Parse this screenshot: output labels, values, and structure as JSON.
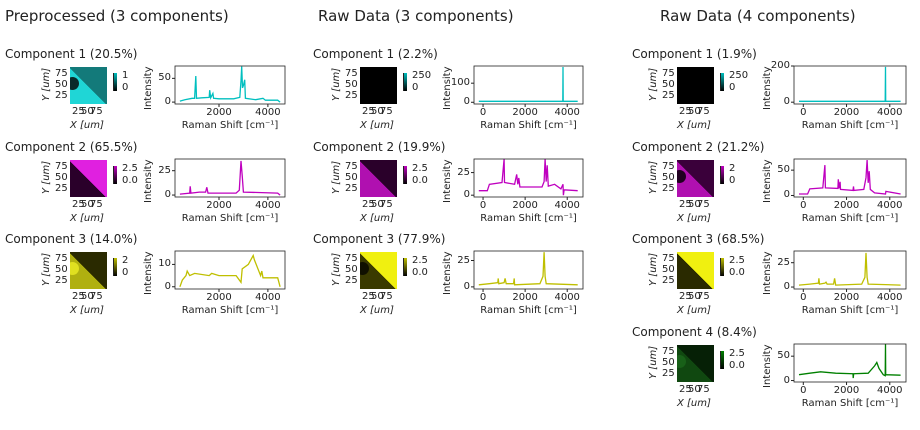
{
  "colors": {
    "cyan": "#00bfbf",
    "magenta": "#bf00bf",
    "yellow": "#bfbf00",
    "green": "#008000"
  },
  "axis_labels": {
    "map_x": "X [um]",
    "map_y": "Y [um]",
    "spec_x": "Raman Shift [cm⁻¹]",
    "spec_y": "Intensity"
  },
  "map_ticks": {
    "x": [
      "25",
      "50",
      "75"
    ],
    "y": [
      "75",
      "50",
      "25"
    ]
  },
  "chart_data": [
    {
      "title": "Preprocessed (3 components)",
      "type": "line",
      "xlim": [
        200,
        4700
      ],
      "xticks": [
        2000,
        4000
      ],
      "panels": [
        {
          "title": "Component 1 (20.5%)",
          "color": "cyan",
          "colorbar_ticks": [
            "1",
            "0"
          ],
          "map_colors": [
            "#137a7a",
            "#1fd6d6"
          ],
          "map_circle": "#0a2a2a",
          "ylim": [
            -4,
            76
          ],
          "yticks": [
            0,
            50
          ],
          "spectrum": [
            [
              400,
              2
            ],
            [
              600,
              5
            ],
            [
              900,
              8
            ],
            [
              1000,
              8
            ],
            [
              1050,
              55
            ],
            [
              1080,
              8
            ],
            [
              1300,
              9
            ],
            [
              1600,
              10
            ],
            [
              1620,
              25
            ],
            [
              1660,
              9
            ],
            [
              1750,
              18
            ],
            [
              1780,
              8
            ],
            [
              2000,
              7
            ],
            [
              2600,
              7
            ],
            [
              2850,
              10
            ],
            [
              2900,
              45
            ],
            [
              2930,
              75
            ],
            [
              2960,
              30
            ],
            [
              3000,
              35
            ],
            [
              3050,
              47
            ],
            [
              3080,
              8
            ],
            [
              3500,
              5
            ],
            [
              3800,
              8
            ],
            [
              3900,
              4
            ],
            [
              4400,
              4
            ],
            [
              4500,
              0
            ]
          ]
        },
        {
          "title": "Component 2 (65.5%)",
          "color": "magenta",
          "colorbar_ticks": [
            "2.5",
            "0.0"
          ],
          "map_colors": [
            "#e020e0",
            "#2a002a"
          ],
          "map_circle": null,
          "ylim": [
            -2,
            37
          ],
          "yticks": [
            0,
            25
          ],
          "spectrum": [
            [
              400,
              1
            ],
            [
              800,
              2
            ],
            [
              820,
              9
            ],
            [
              850,
              2
            ],
            [
              1200,
              3
            ],
            [
              1450,
              3
            ],
            [
              1500,
              8
            ],
            [
              1550,
              2
            ],
            [
              2700,
              2
            ],
            [
              2830,
              5
            ],
            [
              2900,
              35
            ],
            [
              2950,
              20
            ],
            [
              3000,
              3
            ],
            [
              4400,
              2
            ],
            [
              4500,
              0
            ]
          ]
        },
        {
          "title": "Component 3 (14.0%)",
          "color": "yellow",
          "colorbar_ticks": [
            "2",
            "0"
          ],
          "map_colors": [
            "#2a2a00",
            "#b0b010"
          ],
          "map_circle": "#e0e020",
          "ylim": [
            -1,
            16
          ],
          "yticks": [
            0,
            10
          ],
          "spectrum": [
            [
              400,
              0
            ],
            [
              500,
              3
            ],
            [
              650,
              5
            ],
            [
              700,
              7
            ],
            [
              800,
              5
            ],
            [
              1000,
              6
            ],
            [
              1600,
              5
            ],
            [
              1700,
              6
            ],
            [
              2000,
              5
            ],
            [
              2700,
              5
            ],
            [
              2900,
              2
            ],
            [
              2950,
              8
            ],
            [
              3200,
              10
            ],
            [
              3400,
              14
            ],
            [
              3450,
              12
            ],
            [
              3700,
              5
            ],
            [
              3750,
              7
            ],
            [
              3800,
              4
            ],
            [
              4400,
              4
            ],
            [
              4500,
              0
            ]
          ]
        }
      ]
    },
    {
      "title": "Raw Data (3 components)",
      "type": "line",
      "xlim": [
        -430,
        4750
      ],
      "xticks": [
        0,
        2000,
        4000
      ],
      "panels": [
        {
          "title": "Component 1 (2.2%)",
          "color": "cyan",
          "colorbar_ticks": [
            "250",
            "0"
          ],
          "map_colors": [
            "#000000",
            "#000000"
          ],
          "map_circle": null,
          "ylim": [
            -9,
            190
          ],
          "yticks": [
            0,
            100
          ],
          "spectrum": [
            [
              -200,
              5
            ],
            [
              3790,
              5
            ],
            [
              3800,
              185
            ],
            [
              3810,
              5
            ],
            [
              4500,
              5
            ]
          ]
        },
        {
          "title": "Component 2 (19.9%)",
          "color": "magenta",
          "colorbar_ticks": [
            "2.5",
            "0.0"
          ],
          "map_colors": [
            "#2a002a",
            "#b010b0"
          ],
          "map_circle": null,
          "ylim": [
            -2,
            40
          ],
          "yticks": [
            0,
            25
          ],
          "spectrum": [
            [
              -200,
              5
            ],
            [
              200,
              5
            ],
            [
              300,
              12
            ],
            [
              900,
              14
            ],
            [
              1000,
              40
            ],
            [
              1020,
              14
            ],
            [
              1500,
              12
            ],
            [
              1600,
              23
            ],
            [
              1650,
              12
            ],
            [
              1700,
              19
            ],
            [
              1750,
              9
            ],
            [
              2800,
              9
            ],
            [
              2900,
              15
            ],
            [
              2950,
              40
            ],
            [
              3000,
              15
            ],
            [
              3050,
              33
            ],
            [
              3100,
              10
            ],
            [
              3400,
              12
            ],
            [
              3700,
              7
            ],
            [
              3800,
              12
            ],
            [
              3820,
              0
            ],
            [
              3850,
              6
            ],
            [
              4500,
              5
            ]
          ]
        },
        {
          "title": "Component 3 (77.9%)",
          "color": "yellow",
          "colorbar_ticks": [
            "2.5",
            "0.0"
          ],
          "map_colors": [
            "#f0f010",
            "#3a3a00"
          ],
          "map_circle": "#101000",
          "ylim": [
            -2,
            34
          ],
          "yticks": [
            0,
            25
          ],
          "spectrum": [
            [
              -200,
              2
            ],
            [
              300,
              3
            ],
            [
              700,
              4
            ],
            [
              720,
              8
            ],
            [
              750,
              3
            ],
            [
              1000,
              4
            ],
            [
              1050,
              8
            ],
            [
              1100,
              3
            ],
            [
              1450,
              3
            ],
            [
              1480,
              8
            ],
            [
              1500,
              2
            ],
            [
              2700,
              3
            ],
            [
              2850,
              10
            ],
            [
              2900,
              33
            ],
            [
              2950,
              10
            ],
            [
              3000,
              3
            ],
            [
              4500,
              2
            ]
          ]
        }
      ]
    },
    {
      "title": "Raw Data (4 components)",
      "type": "line",
      "xlim": [
        -430,
        4750
      ],
      "xticks": [
        0,
        2000,
        4000
      ],
      "panels": [
        {
          "title": "Component 1 (1.9%)",
          "color": "cyan",
          "colorbar_ticks": [
            "250",
            "0"
          ],
          "map_colors": [
            "#000000",
            "#000000"
          ],
          "map_circle": null,
          "ylim": [
            -10,
            200
          ],
          "yticks": [
            0,
            200
          ],
          "spectrum": [
            [
              -200,
              5
            ],
            [
              3790,
              5
            ],
            [
              3800,
              195
            ],
            [
              3810,
              5
            ],
            [
              4500,
              5
            ]
          ]
        },
        {
          "title": "Component 2 (21.2%)",
          "color": "magenta",
          "colorbar_ticks": [
            "2",
            "0"
          ],
          "map_colors": [
            "#3a003a",
            "#b010b0"
          ],
          "map_circle": "#200020",
          "ylim": [
            -3,
            72
          ],
          "yticks": [
            0,
            50
          ],
          "spectrum": [
            [
              -200,
              3
            ],
            [
              200,
              3
            ],
            [
              300,
              13
            ],
            [
              900,
              15
            ],
            [
              1000,
              60
            ],
            [
              1020,
              15
            ],
            [
              1600,
              14
            ],
            [
              1620,
              32
            ],
            [
              1650,
              14
            ],
            [
              1700,
              27
            ],
            [
              1720,
              12
            ],
            [
              2300,
              10
            ],
            [
              2320,
              18
            ],
            [
              2340,
              10
            ],
            [
              2800,
              12
            ],
            [
              2900,
              35
            ],
            [
              2950,
              70
            ],
            [
              3000,
              25
            ],
            [
              3050,
              48
            ],
            [
              3100,
              12
            ],
            [
              3300,
              5
            ],
            [
              3800,
              3
            ],
            [
              3820,
              8
            ],
            [
              4500,
              3
            ]
          ]
        },
        {
          "title": "Component 3 (68.5%)",
          "color": "yellow",
          "colorbar_ticks": [
            "2.5",
            "0.0"
          ],
          "map_colors": [
            "#f0f010",
            "#2a2a00"
          ],
          "map_circle": null,
          "ylim": [
            -2,
            37
          ],
          "yticks": [
            0,
            25
          ],
          "spectrum": [
            [
              -200,
              2
            ],
            [
              300,
              3
            ],
            [
              700,
              4
            ],
            [
              720,
              9
            ],
            [
              750,
              3
            ],
            [
              1000,
              4
            ],
            [
              1050,
              5
            ],
            [
              1100,
              3
            ],
            [
              1400,
              3
            ],
            [
              1450,
              9
            ],
            [
              1500,
              2
            ],
            [
              2700,
              3
            ],
            [
              2850,
              10
            ],
            [
              2900,
              35
            ],
            [
              2950,
              10
            ],
            [
              3000,
              3
            ],
            [
              4500,
              2
            ]
          ]
        },
        {
          "title": "Component 4 (8.4%)",
          "color": "green",
          "colorbar_ticks": [
            "2.5",
            "0.0"
          ],
          "map_colors": [
            "#062006",
            "#104810"
          ],
          "map_circle": "#186018",
          "ylim": [
            -3,
            75
          ],
          "yticks": [
            0,
            50
          ],
          "spectrum": [
            [
              -200,
              12
            ],
            [
              300,
              15
            ],
            [
              800,
              18
            ],
            [
              1500,
              15
            ],
            [
              2300,
              14
            ],
            [
              2310,
              5
            ],
            [
              2330,
              14
            ],
            [
              3000,
              15
            ],
            [
              3300,
              30
            ],
            [
              3400,
              37
            ],
            [
              3500,
              25
            ],
            [
              3700,
              12
            ],
            [
              3790,
              10
            ],
            [
              3800,
              75
            ],
            [
              3810,
              12
            ],
            [
              4500,
              11
            ]
          ]
        }
      ]
    }
  ]
}
